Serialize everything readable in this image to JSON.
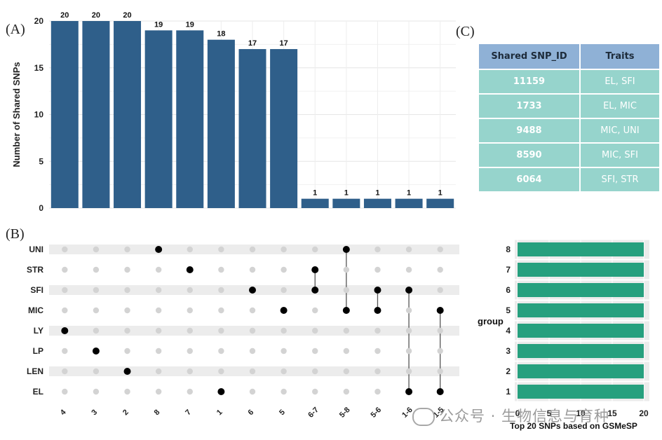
{
  "panel_labels": {
    "a": "(A)",
    "b": "(B)",
    "c": "(C)"
  },
  "chart_data": [
    {
      "type": "bar",
      "panel": "(A)",
      "ylabel": "Number of Shared SNPs",
      "ylim": [
        0,
        20
      ],
      "yticks": [
        0,
        5,
        10,
        15,
        20
      ],
      "categories": [
        "4",
        "3",
        "2",
        "8",
        "7",
        "1",
        "6",
        "5",
        "6-7",
        "5-8",
        "5-6",
        "1-6",
        "1-5"
      ],
      "values": [
        20,
        20,
        20,
        19,
        19,
        18,
        17,
        17,
        1,
        1,
        1,
        1,
        1
      ],
      "color": "#2f5f8a",
      "grid": true
    },
    {
      "type": "scatter",
      "panel": "(B)",
      "rows": [
        "UNI",
        "STR",
        "SFI",
        "MIC",
        "LY",
        "LP",
        "LEN",
        "EL"
      ],
      "columns": [
        "4",
        "3",
        "2",
        "8",
        "7",
        "1",
        "6",
        "5",
        "6-7",
        "5-8",
        "5-6",
        "1-6",
        "1-5"
      ],
      "active": [
        [
          "LY"
        ],
        [
          "LP"
        ],
        [
          "LEN"
        ],
        [
          "UNI"
        ],
        [
          "STR"
        ],
        [
          "EL"
        ],
        [
          "SFI"
        ],
        [
          "MIC"
        ],
        [
          "STR",
          "SFI"
        ],
        [
          "UNI",
          "MIC"
        ],
        [
          "SFI",
          "MIC"
        ],
        [
          "SFI",
          "EL"
        ],
        [
          "MIC",
          "EL"
        ]
      ],
      "active_color": "#000000",
      "inactive_color": "#d3d3d3"
    },
    {
      "type": "bar",
      "orientation": "horizontal",
      "xlabel": "Top 20 SNPs based on GSMeSP",
      "ylabel": "group",
      "categories": [
        "8",
        "7",
        "6",
        "5",
        "4",
        "3",
        "2",
        "1"
      ],
      "values": [
        20,
        20,
        20,
        20,
        20,
        20,
        20,
        20
      ],
      "xlim": [
        0,
        20
      ],
      "xticks": [
        0,
        5,
        10,
        15,
        20
      ],
      "color": "#26a07e"
    },
    {
      "type": "table",
      "panel": "(C)",
      "headers": [
        "Shared SNP_ID",
        "Traits"
      ],
      "rows": [
        [
          "11159",
          "EL, SFI"
        ],
        [
          "1733",
          "EL, MIC"
        ],
        [
          "9488",
          "MIC, UNI"
        ],
        [
          "8590",
          "MIC, SFI"
        ],
        [
          "6064",
          "SFI, STR"
        ]
      ],
      "header_color": "#8fb1d6",
      "cell_color": "#96d4cc"
    }
  ],
  "watermark": "公众号 · 生物信息与育种"
}
